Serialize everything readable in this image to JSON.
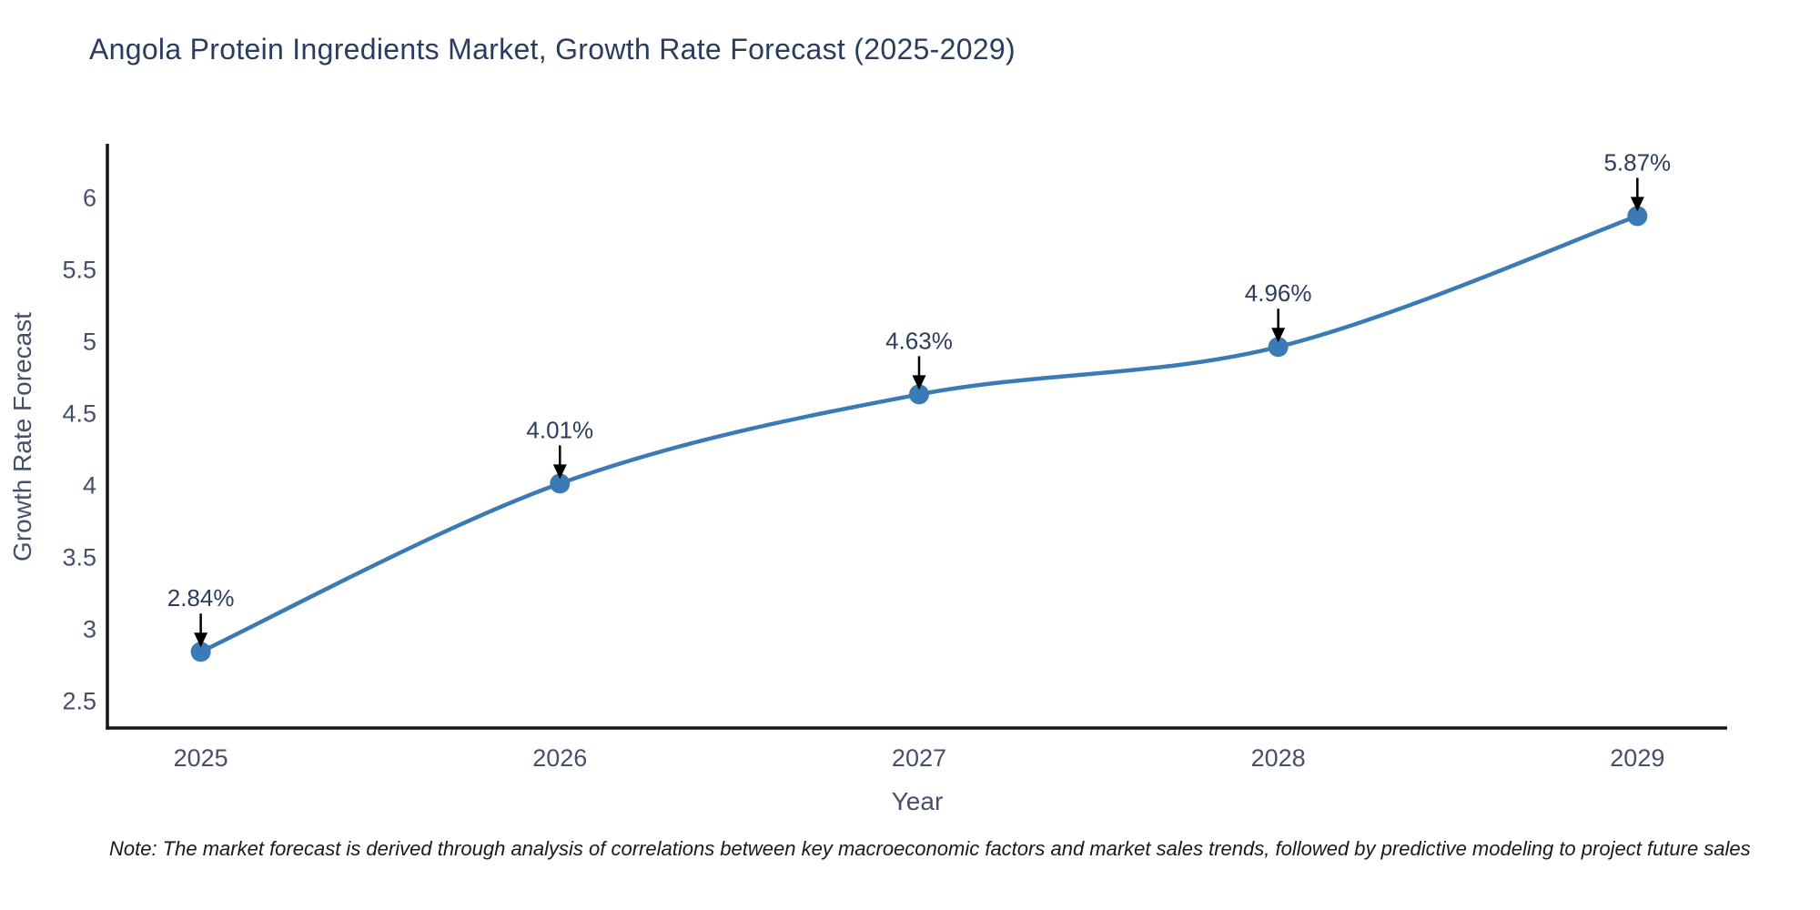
{
  "title": "Angola Protein Ingredients Market, Growth Rate Forecast (2025-2029)",
  "footnote": "Note: The market forecast is derived through analysis of correlations between key macroeconomic factors and market sales trends, followed by predictive modeling to project future sales",
  "colors": {
    "line": "#3a7ab5",
    "marker": "#3a7ab5",
    "axis": "#141414",
    "title_text": "#2b3d5f",
    "tick_text": "#44506b",
    "annotation_text": "#2b3d5f",
    "arrow": "#000000",
    "background": "#ffffff"
  },
  "chart_data": {
    "type": "line",
    "line_shape": "spline",
    "title": "Angola Protein Ingredients Market, Growth Rate Forecast (2025-2029)",
    "xlabel": "Year",
    "ylabel": "Growth Rate Forecast",
    "x": [
      2025,
      2026,
      2027,
      2028,
      2029
    ],
    "values": [
      2.84,
      4.01,
      4.63,
      4.96,
      5.87
    ],
    "point_labels": [
      "2.84%",
      "4.01%",
      "4.63%",
      "4.96%",
      "5.87%"
    ],
    "xticks": [
      2025,
      2026,
      2027,
      2028,
      2029
    ],
    "yticks": [
      2.5,
      3,
      3.5,
      4,
      4.5,
      5,
      5.5,
      6
    ],
    "xlim": [
      2024.74,
      2029.25
    ],
    "ylim": [
      2.31,
      6.36
    ],
    "grid": false,
    "legend": "none",
    "annotations_have_arrows": true
  }
}
